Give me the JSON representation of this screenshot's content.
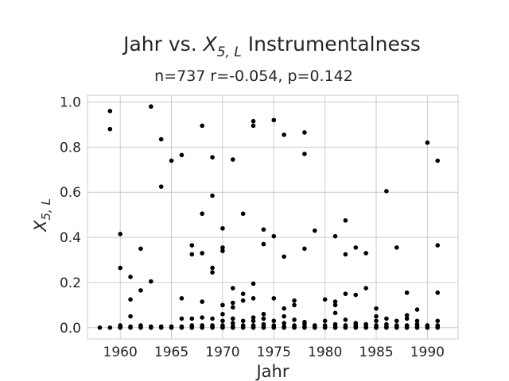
{
  "chart_data": {
    "type": "scatter",
    "title": "Jahr vs. X5, L Instrumentalness",
    "title_parts": {
      "before": "Jahr vs. ",
      "var": "X",
      "sub": "5, L",
      "after": " Instrumentalness"
    },
    "subtitle": "n=737 r=-0.054, p=0.142",
    "xlabel": "Jahr",
    "ylabel": "X5, L",
    "ylabel_parts": {
      "var": "X",
      "sub": "5, L"
    },
    "xlim": [
      1956.8,
      1993.0
    ],
    "ylim": [
      -0.05,
      1.03
    ],
    "xticks": [
      1960,
      1965,
      1970,
      1975,
      1980,
      1985,
      1990
    ],
    "xtick_labels": [
      "1960",
      "1965",
      "1970",
      "1975",
      "1980",
      "1985",
      "1990"
    ],
    "yticks": [
      0.0,
      0.2,
      0.4,
      0.6,
      0.8,
      1.0
    ],
    "ytick_labels": [
      "0.0",
      "0.2",
      "0.4",
      "0.6",
      "0.8",
      "1.0"
    ],
    "grid": true,
    "marker_color": "#000000",
    "points": [
      [
        1958,
        0.0
      ],
      [
        1959,
        0.0
      ],
      [
        1959,
        0.96
      ],
      [
        1959,
        0.88
      ],
      [
        1960,
        0.0
      ],
      [
        1960,
        0.005
      ],
      [
        1960,
        0.01
      ],
      [
        1960,
        0.415
      ],
      [
        1960,
        0.265
      ],
      [
        1961,
        0.0
      ],
      [
        1961,
        0.005
      ],
      [
        1961,
        0.05
      ],
      [
        1961,
        0.125
      ],
      [
        1961,
        0.225
      ],
      [
        1962,
        0.0
      ],
      [
        1962,
        0.005
      ],
      [
        1962,
        0.01
      ],
      [
        1962,
        0.165
      ],
      [
        1962,
        0.35
      ],
      [
        1963,
        0.0
      ],
      [
        1963,
        0.005
      ],
      [
        1963,
        0.205
      ],
      [
        1963,
        0.98
      ],
      [
        1964,
        0.0
      ],
      [
        1964,
        0.005
      ],
      [
        1964,
        0.835
      ],
      [
        1964,
        0.625
      ],
      [
        1965,
        0.0
      ],
      [
        1965,
        0.005
      ],
      [
        1965,
        0.74
      ],
      [
        1966,
        0.0
      ],
      [
        1966,
        0.005
      ],
      [
        1966,
        0.04
      ],
      [
        1966,
        0.13
      ],
      [
        1966,
        0.765
      ],
      [
        1967,
        0.0
      ],
      [
        1967,
        0.005
      ],
      [
        1967,
        0.01
      ],
      [
        1967,
        0.04
      ],
      [
        1967,
        0.325
      ],
      [
        1967,
        0.365
      ],
      [
        1968,
        0.0
      ],
      [
        1968,
        0.005
      ],
      [
        1968,
        0.01
      ],
      [
        1968,
        0.045
      ],
      [
        1968,
        0.115
      ],
      [
        1968,
        0.33
      ],
      [
        1968,
        0.505
      ],
      [
        1968,
        0.895
      ],
      [
        1969,
        0.0
      ],
      [
        1969,
        0.005
      ],
      [
        1969,
        0.01
      ],
      [
        1969,
        0.04
      ],
      [
        1969,
        0.245
      ],
      [
        1969,
        0.265
      ],
      [
        1969,
        0.585
      ],
      [
        1969,
        0.755
      ],
      [
        1970,
        0.0
      ],
      [
        1970,
        0.005
      ],
      [
        1970,
        0.01
      ],
      [
        1970,
        0.03
      ],
      [
        1970,
        0.06
      ],
      [
        1970,
        0.1
      ],
      [
        1970,
        0.34
      ],
      [
        1970,
        0.355
      ],
      [
        1970,
        0.44
      ],
      [
        1971,
        0.0
      ],
      [
        1971,
        0.005
      ],
      [
        1971,
        0.02
      ],
      [
        1971,
        0.04
      ],
      [
        1971,
        0.09
      ],
      [
        1971,
        0.11
      ],
      [
        1971,
        0.175
      ],
      [
        1971,
        0.745
      ],
      [
        1972,
        0.0
      ],
      [
        1972,
        0.005
      ],
      [
        1972,
        0.01
      ],
      [
        1972,
        0.03
      ],
      [
        1972,
        0.12
      ],
      [
        1972,
        0.15
      ],
      [
        1972,
        0.505
      ],
      [
        1973,
        0.0
      ],
      [
        1973,
        0.005
      ],
      [
        1973,
        0.01
      ],
      [
        1973,
        0.03
      ],
      [
        1973,
        0.045
      ],
      [
        1973,
        0.13
      ],
      [
        1973,
        0.195
      ],
      [
        1973,
        0.895
      ],
      [
        1973,
        0.915
      ],
      [
        1974,
        0.0
      ],
      [
        1974,
        0.005
      ],
      [
        1974,
        0.015
      ],
      [
        1974,
        0.04
      ],
      [
        1974,
        0.06
      ],
      [
        1974,
        0.37
      ],
      [
        1974,
        0.435
      ],
      [
        1975,
        0.0
      ],
      [
        1975,
        0.005
      ],
      [
        1975,
        0.01
      ],
      [
        1975,
        0.03
      ],
      [
        1975,
        0.13
      ],
      [
        1975,
        0.405
      ],
      [
        1975,
        0.92
      ],
      [
        1976,
        0.0
      ],
      [
        1976,
        0.005
      ],
      [
        1976,
        0.02
      ],
      [
        1976,
        0.05
      ],
      [
        1976,
        0.085
      ],
      [
        1976,
        0.315
      ],
      [
        1976,
        0.855
      ],
      [
        1977,
        0.0
      ],
      [
        1977,
        0.005
      ],
      [
        1977,
        0.01
      ],
      [
        1977,
        0.035
      ],
      [
        1977,
        0.1
      ],
      [
        1977,
        0.12
      ],
      [
        1978,
        0.0
      ],
      [
        1978,
        0.005
      ],
      [
        1978,
        0.015
      ],
      [
        1978,
        0.025
      ],
      [
        1978,
        0.35
      ],
      [
        1978,
        0.77
      ],
      [
        1978,
        0.865
      ],
      [
        1979,
        0.0
      ],
      [
        1979,
        0.005
      ],
      [
        1979,
        0.01
      ],
      [
        1979,
        0.43
      ],
      [
        1980,
        0.0
      ],
      [
        1980,
        0.005
      ],
      [
        1980,
        0.01
      ],
      [
        1980,
        0.03
      ],
      [
        1980,
        0.125
      ],
      [
        1981,
        0.0
      ],
      [
        1981,
        0.005
      ],
      [
        1981,
        0.015
      ],
      [
        1981,
        0.065
      ],
      [
        1981,
        0.1
      ],
      [
        1981,
        0.115
      ],
      [
        1981,
        0.405
      ],
      [
        1982,
        0.0
      ],
      [
        1982,
        0.005
      ],
      [
        1982,
        0.01
      ],
      [
        1982,
        0.035
      ],
      [
        1982,
        0.15
      ],
      [
        1982,
        0.325
      ],
      [
        1982,
        0.475
      ],
      [
        1983,
        0.0
      ],
      [
        1983,
        0.005
      ],
      [
        1983,
        0.01
      ],
      [
        1983,
        0.02
      ],
      [
        1983,
        0.145
      ],
      [
        1983,
        0.355
      ],
      [
        1984,
        0.0
      ],
      [
        1984,
        0.005
      ],
      [
        1984,
        0.015
      ],
      [
        1984,
        0.175
      ],
      [
        1984,
        0.33
      ],
      [
        1985,
        0.0
      ],
      [
        1985,
        0.005
      ],
      [
        1985,
        0.01
      ],
      [
        1985,
        0.03
      ],
      [
        1985,
        0.05
      ],
      [
        1985,
        0.085
      ],
      [
        1986,
        0.0
      ],
      [
        1986,
        0.005
      ],
      [
        1986,
        0.015
      ],
      [
        1986,
        0.04
      ],
      [
        1986,
        0.605
      ],
      [
        1987,
        0.0
      ],
      [
        1987,
        0.005
      ],
      [
        1987,
        0.01
      ],
      [
        1987,
        0.03
      ],
      [
        1987,
        0.355
      ],
      [
        1988,
        0.0
      ],
      [
        1988,
        0.005
      ],
      [
        1988,
        0.01
      ],
      [
        1988,
        0.04
      ],
      [
        1988,
        0.055
      ],
      [
        1988,
        0.155
      ],
      [
        1989,
        0.0
      ],
      [
        1989,
        0.005
      ],
      [
        1989,
        0.015
      ],
      [
        1989,
        0.03
      ],
      [
        1989,
        0.08
      ],
      [
        1990,
        0.0
      ],
      [
        1990,
        0.005
      ],
      [
        1990,
        0.01
      ],
      [
        1990,
        0.82
      ],
      [
        1991,
        0.0
      ],
      [
        1991,
        0.005
      ],
      [
        1991,
        0.01
      ],
      [
        1991,
        0.03
      ],
      [
        1991,
        0.155
      ],
      [
        1991,
        0.365
      ],
      [
        1991,
        0.74
      ]
    ]
  }
}
